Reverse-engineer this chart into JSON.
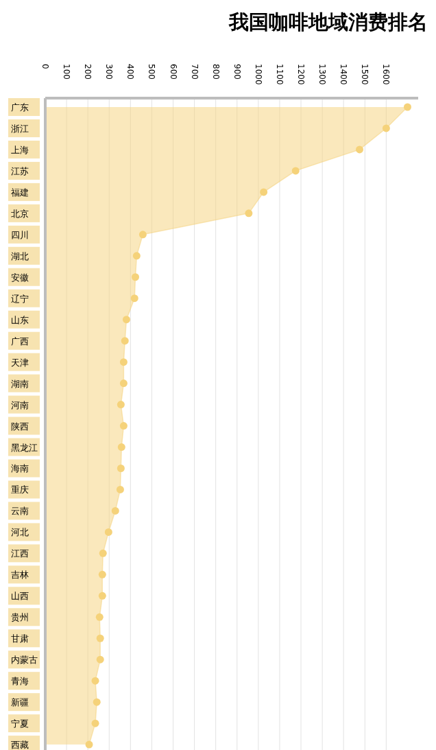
{
  "chart_data": {
    "type": "area",
    "orientation": "horizontal",
    "title": "我国咖啡地域消费排名",
    "categories": [
      "广东",
      "浙江",
      "上海",
      "江苏",
      "福建",
      "北京",
      "四川",
      "湖北",
      "安徽",
      "辽宁",
      "山东",
      "广西",
      "天津",
      "湖南",
      "河南",
      "陕西",
      "黑龙江",
      "海南",
      "重庆",
      "云南",
      "河北",
      "江西",
      "吉林",
      "山西",
      "贵州",
      "甘肃",
      "内蒙古",
      "青海",
      "新疆",
      "宁夏",
      "西藏"
    ],
    "series": [
      {
        "color": "#f5d27a",
        "values": [
          1700,
          1600,
          1475,
          1175,
          1025,
          955,
          458,
          429,
          423,
          419,
          381,
          374,
          368,
          368,
          355,
          368,
          358,
          355,
          352,
          329,
          297,
          271,
          268,
          268,
          255,
          258,
          258,
          235,
          242,
          235,
          206
        ]
      }
    ],
    "xlim": [
      0,
      1750
    ],
    "xticks": [
      0,
      100,
      200,
      300,
      400,
      500,
      600,
      700,
      800,
      900,
      1000,
      1100,
      1200,
      1300,
      1400,
      1500,
      1600
    ],
    "grid": "x",
    "marker": "circle"
  }
}
